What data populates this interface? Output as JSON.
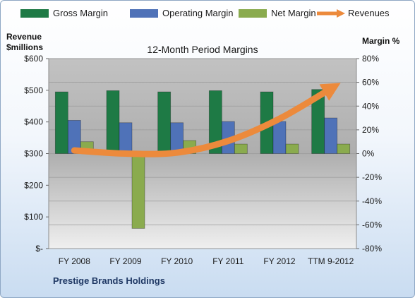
{
  "chart_data": {
    "type": "bar",
    "title": "12-Month Period Margins",
    "company": "Prestige Brands Holdings",
    "left_axis_label": [
      "Revenue",
      "$millions"
    ],
    "right_axis_label": "Margin %",
    "categories": [
      "FY 2008",
      "FY 2009",
      "FY 2010",
      "FY 2011",
      "FY 2012",
      "TTM 9-2012"
    ],
    "left_ticks": [
      "$-",
      "$100",
      "$200",
      "$300",
      "$400",
      "$500",
      "$600"
    ],
    "left_ylim": [
      0,
      600
    ],
    "right_ticks": [
      "-80%",
      "-60%",
      "-40%",
      "-20%",
      "0%",
      "20%",
      "40%",
      "60%",
      "80%"
    ],
    "right_ylim": [
      -80,
      80
    ],
    "series": [
      {
        "name": "Gross Margin",
        "color": "#1e7a45",
        "values": [
          52,
          53,
          52,
          53,
          52,
          54
        ]
      },
      {
        "name": "Operating Margin",
        "color": "#4f72b8",
        "values": [
          28,
          26,
          26,
          27,
          27,
          30
        ]
      },
      {
        "name": "Net Margin",
        "color": "#8aab4e",
        "values": [
          10,
          -63,
          11,
          8,
          8,
          8
        ]
      }
    ],
    "line_series": {
      "name": "Revenues",
      "color": "#ec8a3c",
      "values": [
        310,
        300,
        303,
        340,
        410,
        505
      ]
    },
    "grid": true,
    "legend_position": "top"
  }
}
